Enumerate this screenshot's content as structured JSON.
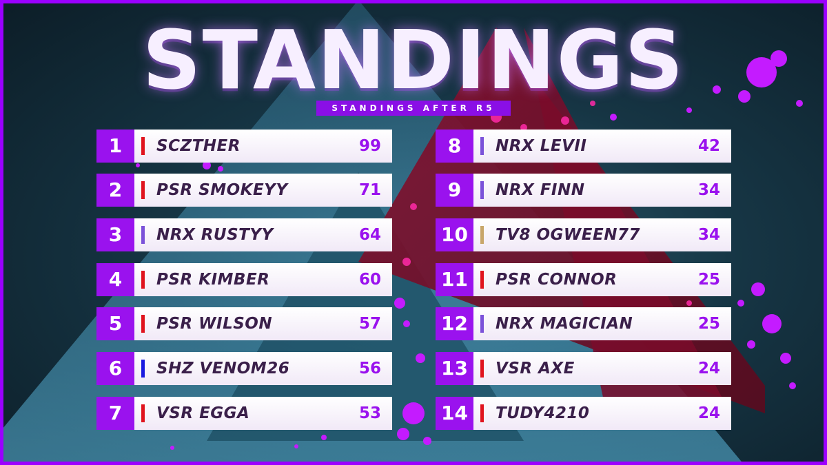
{
  "title": "STANDINGS",
  "subtitle": "STANDINGS AFTER R5",
  "colors": {
    "accent": "#9a12ee",
    "frame": "#9b00ff",
    "tag_red": "#e0141e",
    "tag_purple": "#7b52d9",
    "tag_blue": "#1a1ae0",
    "tag_gold": "#c8a66a"
  },
  "left_column": [
    {
      "rank": "1",
      "name": "SCZTHER",
      "points": "99",
      "tag_color": "#e0141e"
    },
    {
      "rank": "2",
      "name": "PSR SMOKEYY",
      "points": "71",
      "tag_color": "#e0141e"
    },
    {
      "rank": "3",
      "name": "NRX RUSTYY",
      "points": "64",
      "tag_color": "#7b52d9"
    },
    {
      "rank": "4",
      "name": "PSR KIMBER",
      "points": "60",
      "tag_color": "#e0141e"
    },
    {
      "rank": "5",
      "name": "PSR WILSON",
      "points": "57",
      "tag_color": "#e0141e"
    },
    {
      "rank": "6",
      "name": "SHZ VENOM26",
      "points": "56",
      "tag_color": "#1a1ae0"
    },
    {
      "rank": "7",
      "name": "VSR EGGA",
      "points": "53",
      "tag_color": "#e0141e"
    }
  ],
  "right_column": [
    {
      "rank": "8",
      "name": "NRX LEVII",
      "points": "42",
      "tag_color": "#7b52d9"
    },
    {
      "rank": "9",
      "name": "NRX FINN",
      "points": "34",
      "tag_color": "#7b52d9"
    },
    {
      "rank": "10",
      "name": "TV8 OGWEEN77",
      "points": "34",
      "tag_color": "#c8a66a"
    },
    {
      "rank": "11",
      "name": "PSR CONNOR",
      "points": "25",
      "tag_color": "#e0141e"
    },
    {
      "rank": "12",
      "name": "NRX MAGICIAN",
      "points": "25",
      "tag_color": "#7b52d9"
    },
    {
      "rank": "13",
      "name": "VSR AXE",
      "points": "24",
      "tag_color": "#e0141e"
    },
    {
      "rank": "14",
      "name": "TUDY4210",
      "points": "24",
      "tag_color": "#e0141e"
    }
  ]
}
